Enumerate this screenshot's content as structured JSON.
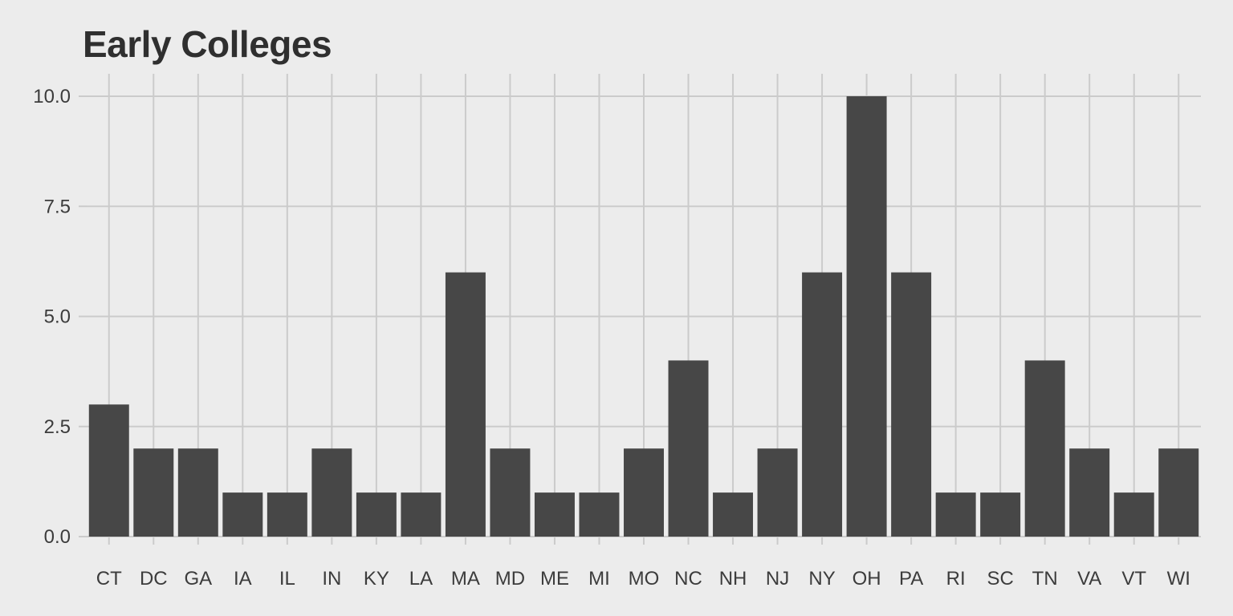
{
  "chart_data": {
    "type": "bar",
    "title": "Early Colleges",
    "xlabel": "",
    "ylabel": "",
    "categories": [
      "CT",
      "DC",
      "GA",
      "IA",
      "IL",
      "IN",
      "KY",
      "LA",
      "MA",
      "MD",
      "ME",
      "MI",
      "MO",
      "NC",
      "NH",
      "NJ",
      "NY",
      "OH",
      "PA",
      "RI",
      "SC",
      "TN",
      "VA",
      "VT",
      "WI"
    ],
    "values": [
      3,
      2,
      2,
      1,
      1,
      2,
      1,
      1,
      6,
      2,
      1,
      1,
      2,
      4,
      1,
      2,
      6,
      10,
      6,
      1,
      1,
      4,
      2,
      1,
      2
    ],
    "ylim": [
      0,
      10
    ],
    "yticks": [
      "0.0",
      "2.5",
      "5.0",
      "7.5",
      "10.0"
    ],
    "grid": true,
    "legend": "none",
    "colors": {
      "background": "#ececec",
      "bar": "#474747",
      "grid": "#cbcbcb",
      "text": "#3c3c3c",
      "title": "#2f2f2f"
    }
  }
}
